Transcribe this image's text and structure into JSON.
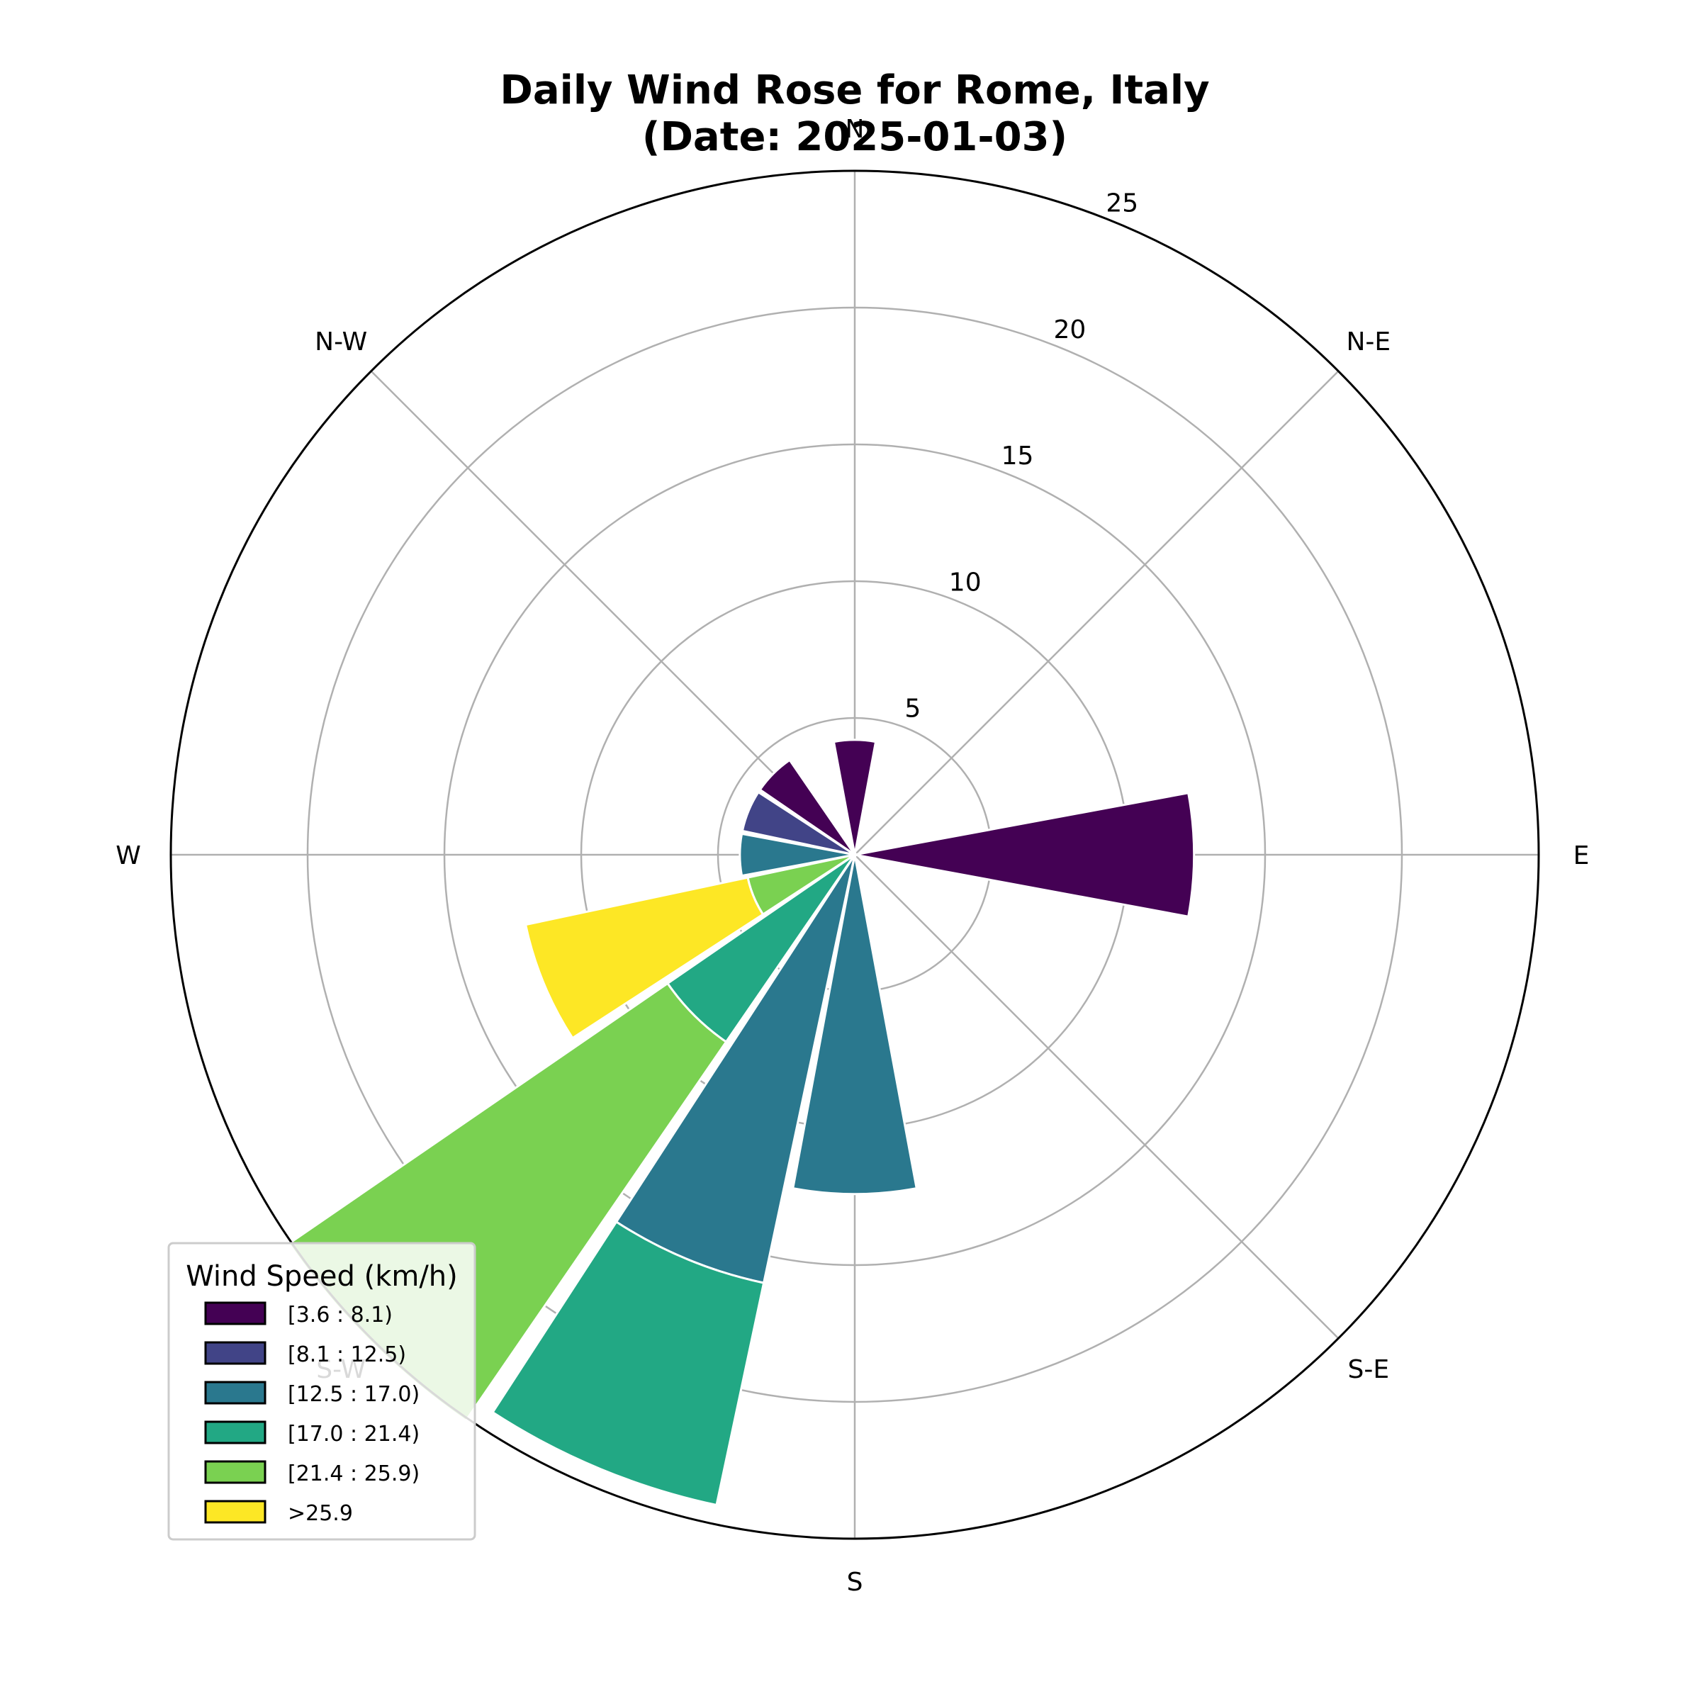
{
  "chart_data": {
    "type": "windrose",
    "title": [
      "Daily Wind Rose for Rome, Italy",
      "(Date: 2025-01-03)"
    ],
    "directions": [
      "N",
      "N-E",
      "E",
      "S-E",
      "S",
      "S-W",
      "W",
      "N-W"
    ],
    "radial_ticks": [
      5,
      10,
      15,
      20,
      25
    ],
    "rmax": 25,
    "grid": true,
    "legend": {
      "title": "Wind Speed (km/h)",
      "placement": "lower-left"
    },
    "bins": [
      {
        "label": "[3.6 : 8.1)",
        "color": "#440154"
      },
      {
        "label": "[8.1 : 12.5)",
        "color": "#414487"
      },
      {
        "label": "[12.5 : 17.0)",
        "color": "#2a788e"
      },
      {
        "label": "[17.0 : 21.4)",
        "color": "#22a884"
      },
      {
        "label": "[21.4 : 25.9)",
        "color": "#7ad151"
      },
      {
        "label": ">25.9",
        "color": "#fde725"
      }
    ],
    "sectors": [
      {
        "direction_deg": 0,
        "stack": [
          4.2
        ]
      },
      {
        "direction_deg": 90,
        "stack": [
          12.4
        ]
      },
      {
        "direction_deg": 180,
        "stack": [
          0,
          0,
          12.4
        ]
      },
      {
        "direction_deg": 202.5,
        "stack": [
          0,
          0,
          16.0,
          8.3
        ]
      },
      {
        "direction_deg": 225,
        "stack": [
          0,
          0,
          0,
          8.3,
          16.8
        ]
      },
      {
        "direction_deg": 247.5,
        "stack": [
          0,
          0,
          0,
          0,
          4.0,
          8.3
        ]
      },
      {
        "direction_deg": 270,
        "stack": [
          0,
          0,
          4.2
        ]
      },
      {
        "direction_deg": 292.5,
        "stack": [
          0,
          4.2
        ]
      },
      {
        "direction_deg": 315,
        "stack": [
          4.2
        ]
      }
    ]
  }
}
